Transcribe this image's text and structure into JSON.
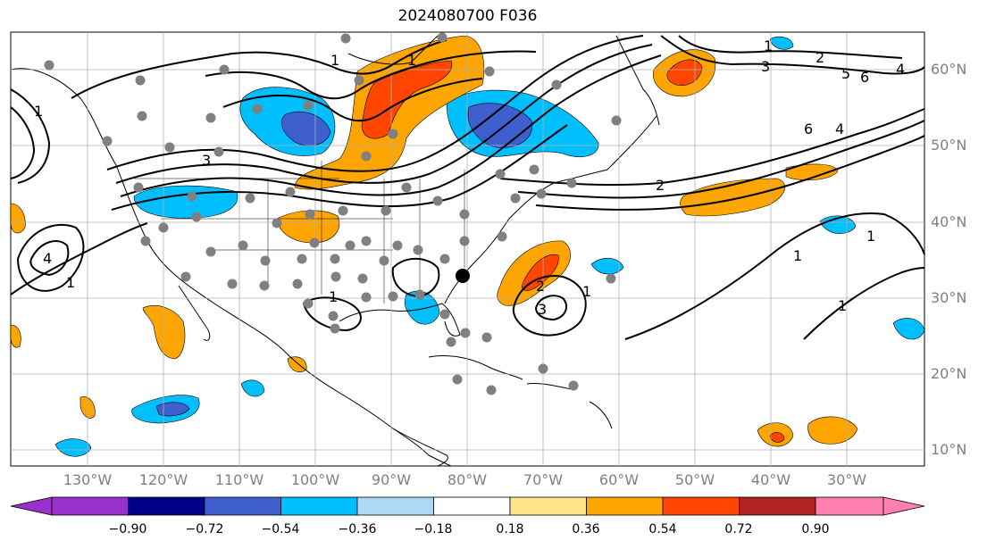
{
  "title": "2024080700 F036",
  "map": {
    "lat_labels": [
      "60°N",
      "50°N",
      "40°N",
      "30°N",
      "20°N",
      "10°N"
    ],
    "lon_labels": [
      "130°W",
      "120°W",
      "110°W",
      "100°W",
      "90°W",
      "80°W",
      "70°W",
      "60°W",
      "50°W",
      "40°W",
      "30°W"
    ],
    "contour_labels": [
      "1",
      "1",
      "1",
      "2",
      "3",
      "4",
      "5",
      "6",
      "6",
      "4",
      "2",
      "1",
      "1",
      "2",
      "3",
      "1",
      "1",
      "1",
      "4",
      "1",
      "1",
      "3"
    ]
  },
  "colorbar": {
    "ticks": [
      "−0.90",
      "−0.72",
      "−0.54",
      "−0.36",
      "−0.18",
      "0.18",
      "0.36",
      "0.54",
      "0.72",
      "0.90"
    ],
    "colors": [
      "#9932cc",
      "#00008b",
      "#3f5fcf",
      "#00bfff",
      "#add8f6",
      "#ffffff",
      "#ffe48a",
      "#ffa500",
      "#ff4500",
      "#b22222",
      "#ff80b0"
    ]
  },
  "colors": {
    "land_line": "#000000",
    "station": "#808080",
    "grid": "#b0b0b0",
    "label": "#808080"
  }
}
